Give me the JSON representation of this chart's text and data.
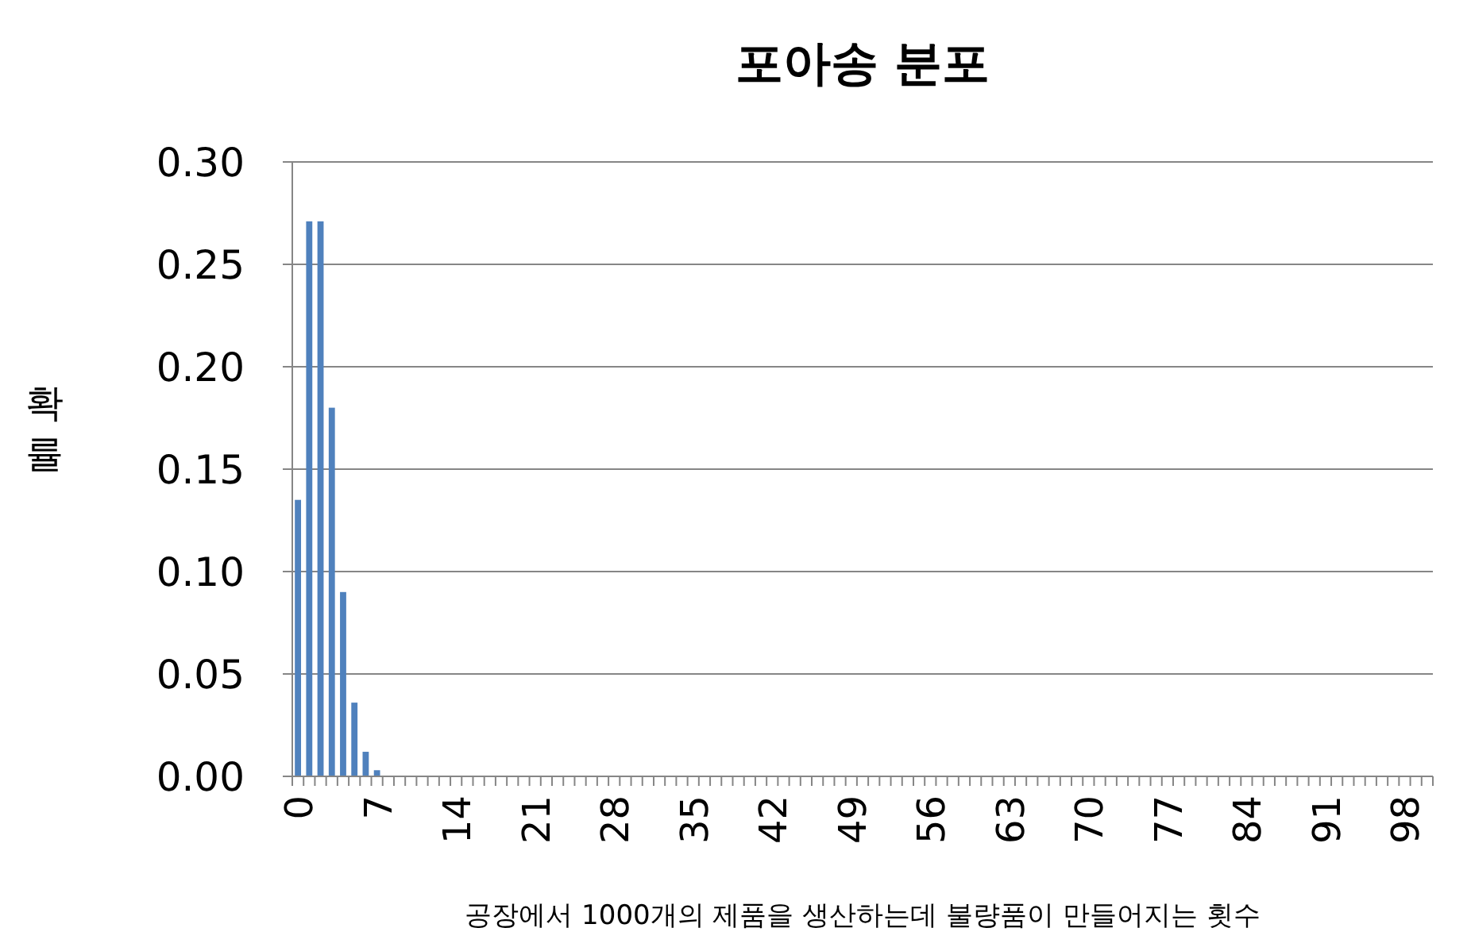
{
  "chart_data": {
    "type": "bar",
    "title": "포아송 분포",
    "xlabel": "공장에서 1000개의 제품을 생산하는데 불량품이 만들어지는 횟수",
    "ylabel": "확률",
    "categories": [
      "0",
      null,
      null,
      null,
      null,
      null,
      null,
      "7",
      null,
      null,
      null,
      null,
      null,
      null,
      "14",
      null,
      null,
      null,
      null,
      null,
      null,
      "21",
      null,
      null,
      null,
      null,
      null,
      null,
      "28",
      null,
      null,
      null,
      null,
      null,
      null,
      "35",
      null,
      null,
      null,
      null,
      null,
      null,
      "42",
      null,
      null,
      null,
      null,
      null,
      null,
      "49",
      null,
      null,
      null,
      null,
      null,
      null,
      "56",
      null,
      null,
      null,
      null,
      null,
      null,
      "63",
      null,
      null,
      null,
      null,
      null,
      null,
      "70",
      null,
      null,
      null,
      null,
      null,
      null,
      "77",
      null,
      null,
      null,
      null,
      null,
      null,
      "84",
      null,
      null,
      null,
      null,
      null,
      null,
      "91",
      null,
      null,
      null,
      null,
      null,
      null,
      "98",
      null,
      null
    ],
    "values": [
      0.135,
      0.271,
      0.271,
      0.18,
      0.09,
      0.036,
      0.012,
      0.003,
      0,
      0,
      0,
      0,
      0,
      0,
      0,
      0,
      0,
      0,
      0,
      0,
      0,
      0,
      0,
      0,
      0,
      0,
      0,
      0,
      0,
      0,
      0,
      0,
      0,
      0,
      0,
      0,
      0,
      0,
      0,
      0,
      0,
      0,
      0,
      0,
      0,
      0,
      0,
      0,
      0,
      0,
      0,
      0,
      0,
      0,
      0,
      0,
      0,
      0,
      0,
      0,
      0,
      0,
      0,
      0,
      0,
      0,
      0,
      0,
      0,
      0,
      0,
      0,
      0,
      0,
      0,
      0,
      0,
      0,
      0,
      0,
      0,
      0,
      0,
      0,
      0,
      0,
      0,
      0,
      0,
      0,
      0,
      0,
      0,
      0,
      0,
      0,
      0,
      0,
      0,
      0,
      0
    ],
    "color": "#4f81bd",
    "ylim": [
      0,
      0.3
    ],
    "yticks": [
      {
        "value": 0,
        "label": "0.00"
      },
      {
        "value": 0.05,
        "label": "0.05"
      },
      {
        "value": 0.1,
        "label": "0.10"
      },
      {
        "value": 0.15,
        "label": "0.15"
      },
      {
        "value": 0.2,
        "label": "0.20"
      },
      {
        "value": 0.25,
        "label": "0.25"
      },
      {
        "value": 0.3,
        "label": "0.30"
      }
    ],
    "grid": "y"
  }
}
